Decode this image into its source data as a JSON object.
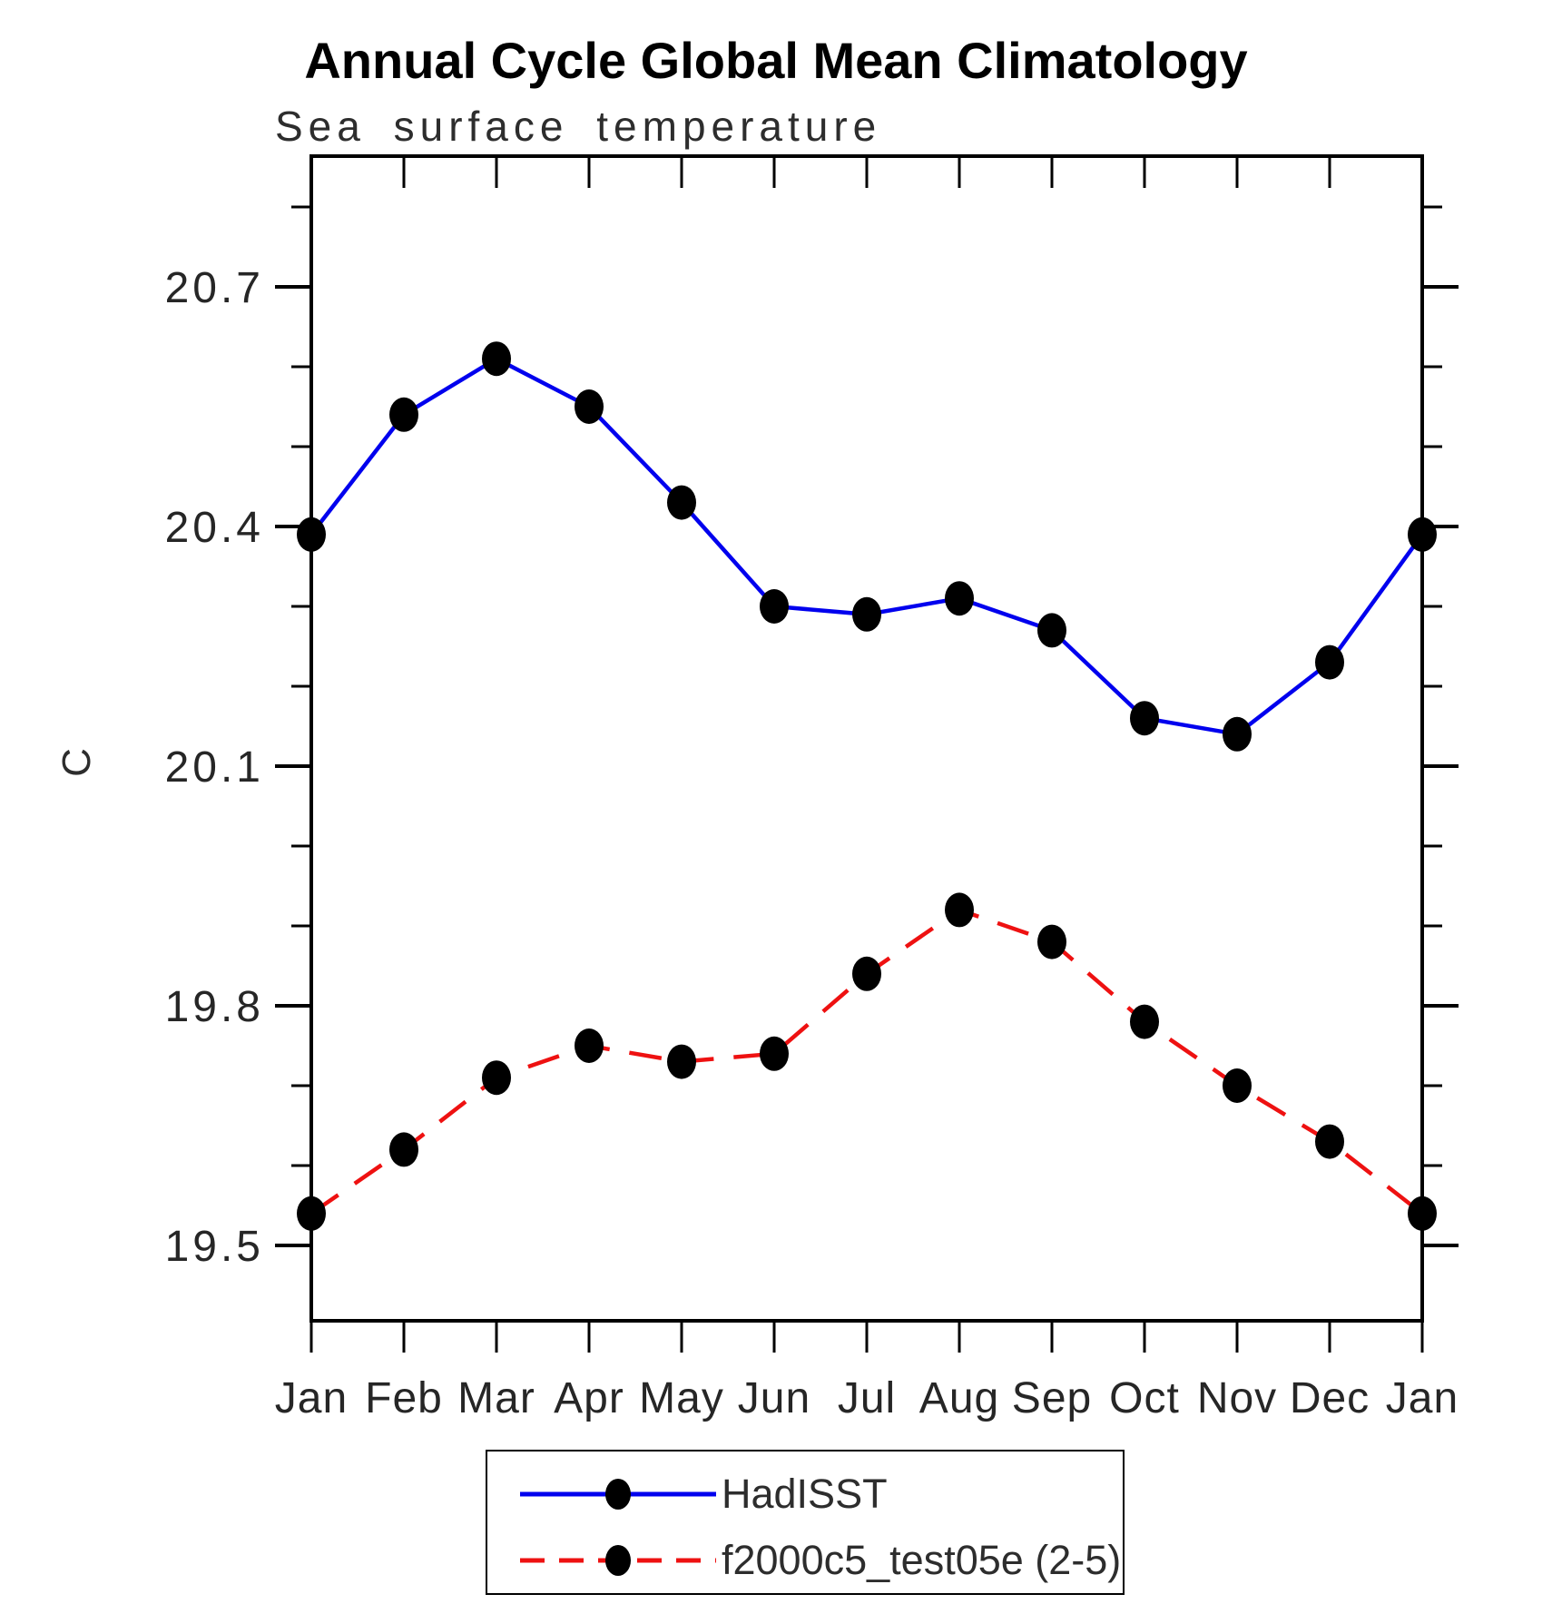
{
  "chart_data": {
    "type": "line",
    "title": "Annual Cycle Global Mean Climatology",
    "subtitle": "Sea surface temperature",
    "xlabel": "",
    "ylabel": "C",
    "categories": [
      "Jan",
      "Feb",
      "Mar",
      "Apr",
      "May",
      "Jun",
      "Jul",
      "Aug",
      "Sep",
      "Oct",
      "Nov",
      "Dec",
      "Jan"
    ],
    "yticks_major": [
      20.7,
      20.4,
      20.1,
      19.8,
      19.5
    ],
    "ytick_minor_step": 0.1,
    "ylim": [
      19.41,
      20.86
    ],
    "grid": false,
    "legend_position": "bottom-center",
    "legend_border": true,
    "series": [
      {
        "name": "HadISST",
        "color": "#0000ee",
        "line_style": "solid",
        "marker": "filled-circle",
        "marker_color": "#000000",
        "values": [
          20.39,
          20.54,
          20.61,
          20.55,
          20.43,
          20.3,
          20.29,
          20.31,
          20.27,
          20.16,
          20.14,
          20.23,
          20.39
        ]
      },
      {
        "name": "f2000c5_test05e (2-5)",
        "color": "#ee1111",
        "line_style": "dashed",
        "marker": "filled-circle",
        "marker_color": "#000000",
        "values": [
          19.54,
          19.62,
          19.71,
          19.75,
          19.73,
          19.74,
          19.84,
          19.92,
          19.88,
          19.78,
          19.7,
          19.63,
          19.54
        ]
      }
    ]
  }
}
